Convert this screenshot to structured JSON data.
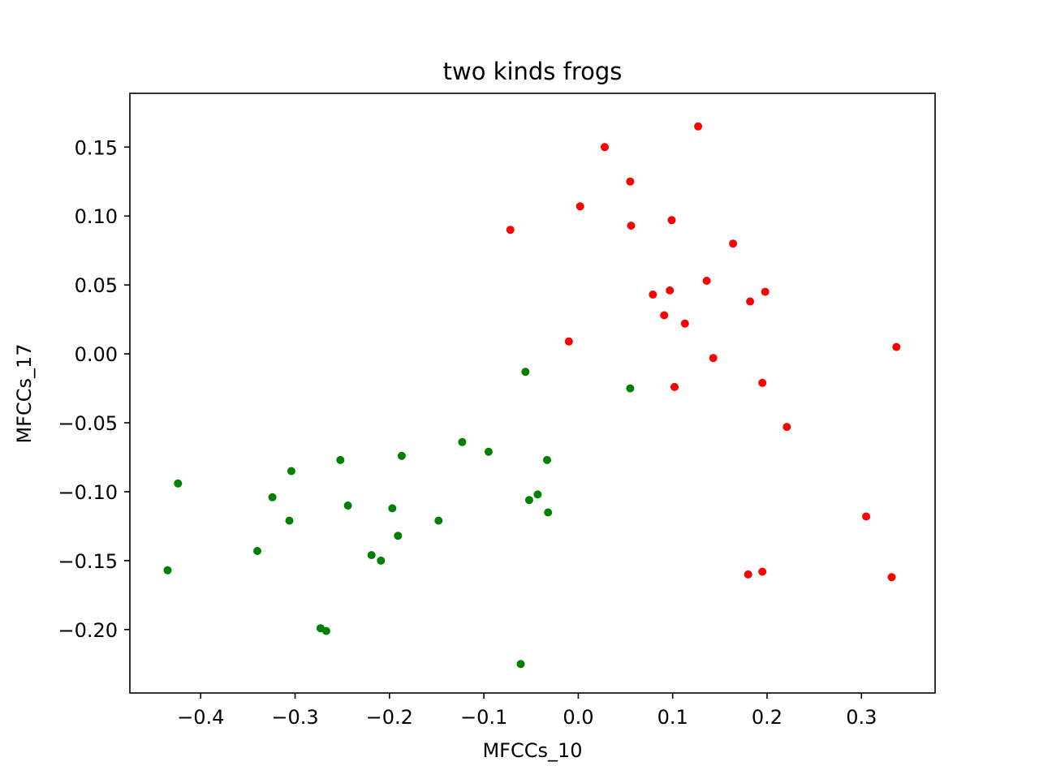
{
  "chart_data": {
    "type": "scatter",
    "title": "two kinds frogs",
    "xlabel": "MFCCs_10",
    "ylabel": "MFCCs_17",
    "xlim": [
      -0.475,
      0.378
    ],
    "ylim": [
      -0.246,
      0.189
    ],
    "xticks": [
      -0.4,
      -0.3,
      -0.2,
      -0.1,
      0.0,
      0.1,
      0.2,
      0.3
    ],
    "xtick_labels": [
      "−0.4",
      "−0.3",
      "−0.2",
      "−0.1",
      "0.0",
      "0.1",
      "0.2",
      "0.3"
    ],
    "yticks": [
      -0.2,
      -0.15,
      -0.1,
      -0.05,
      0.0,
      0.05,
      0.1,
      0.15
    ],
    "ytick_labels": [
      "−0.20",
      "−0.15",
      "−0.10",
      "−0.05",
      "0.00",
      "0.05",
      "0.10",
      "0.15"
    ],
    "grid": false,
    "legend": false,
    "series": [
      {
        "color": "#ff0000",
        "points": [
          [
            0.127,
            0.165
          ],
          [
            0.028,
            0.15
          ],
          [
            0.055,
            0.125
          ],
          [
            0.002,
            0.107
          ],
          [
            -0.072,
            0.09
          ],
          [
            0.056,
            0.093
          ],
          [
            0.099,
            0.097
          ],
          [
            0.164,
            0.08
          ],
          [
            0.136,
            0.053
          ],
          [
            0.097,
            0.046
          ],
          [
            0.079,
            0.043
          ],
          [
            0.198,
            0.045
          ],
          [
            0.182,
            0.038
          ],
          [
            0.091,
            0.028
          ],
          [
            0.113,
            0.022
          ],
          [
            -0.01,
            0.009
          ],
          [
            0.143,
            -0.003
          ],
          [
            0.337,
            0.005
          ],
          [
            0.195,
            -0.021
          ],
          [
            0.102,
            -0.024
          ],
          [
            0.221,
            -0.053
          ],
          [
            0.305,
            -0.118
          ],
          [
            0.18,
            -0.16
          ],
          [
            0.195,
            -0.158
          ],
          [
            0.332,
            -0.162
          ]
        ]
      },
      {
        "color": "#008000",
        "points": [
          [
            -0.056,
            -0.013
          ],
          [
            0.055,
            -0.025
          ],
          [
            -0.123,
            -0.064
          ],
          [
            -0.095,
            -0.071
          ],
          [
            -0.187,
            -0.074
          ],
          [
            -0.252,
            -0.077
          ],
          [
            -0.033,
            -0.077
          ],
          [
            -0.304,
            -0.085
          ],
          [
            -0.424,
            -0.094
          ],
          [
            -0.324,
            -0.104
          ],
          [
            -0.043,
            -0.102
          ],
          [
            -0.052,
            -0.106
          ],
          [
            -0.244,
            -0.11
          ],
          [
            -0.197,
            -0.112
          ],
          [
            -0.032,
            -0.115
          ],
          [
            -0.306,
            -0.121
          ],
          [
            -0.148,
            -0.121
          ],
          [
            -0.191,
            -0.132
          ],
          [
            -0.34,
            -0.143
          ],
          [
            -0.219,
            -0.146
          ],
          [
            -0.209,
            -0.15
          ],
          [
            -0.435,
            -0.157
          ],
          [
            -0.273,
            -0.199
          ],
          [
            -0.267,
            -0.201
          ],
          [
            -0.061,
            -0.225
          ]
        ]
      }
    ]
  }
}
